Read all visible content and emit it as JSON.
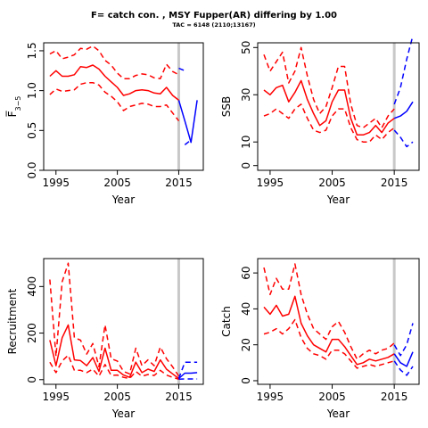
{
  "title": "F= catch con. , MSY Fupper(AR) differing by 1.00",
  "subtitle": "TAC = 6148 (2110;13167)",
  "colors": {
    "historic": "#ff0000",
    "forecast": "#0000ff",
    "divider": "#c8c8c8"
  },
  "chart_data": [
    {
      "type": "line",
      "panel": "F",
      "xlabel": "Year",
      "ylabel": "F̅",
      "ylabel_sub": "3−5",
      "xlim": [
        1993,
        2019
      ],
      "ylim": [
        0,
        1.6
      ],
      "xticks": [
        1995,
        2005,
        2015
      ],
      "xtick_labels": [
        "1995",
        "2005",
        "2015"
      ],
      "yticks": [
        0.0,
        0.5,
        1.0,
        1.5
      ],
      "ytick_labels": [
        "0.0",
        "0.5",
        "1.0",
        "1.5"
      ],
      "divider_x": 2015,
      "series": [
        {
          "role": "historic-median",
          "style": "solid",
          "color": "#ff0000",
          "x": [
            1994,
            1995,
            1996,
            1997,
            1998,
            1999,
            2000,
            2001,
            2002,
            2003,
            2004,
            2005,
            2006,
            2007,
            2008,
            2009,
            2010,
            2011,
            2012,
            2013,
            2014,
            2015
          ],
          "y": [
            1.18,
            1.25,
            1.18,
            1.18,
            1.2,
            1.3,
            1.29,
            1.32,
            1.27,
            1.18,
            1.11,
            1.04,
            0.94,
            0.96,
            1.0,
            1.01,
            1.0,
            0.97,
            0.96,
            1.04,
            0.94,
            0.88
          ]
        },
        {
          "role": "historic-upper",
          "style": "dashed",
          "color": "#ff0000",
          "x": [
            1994,
            1995,
            1996,
            1997,
            1998,
            1999,
            2000,
            2001,
            2002,
            2003,
            2004,
            2005,
            2006,
            2007,
            2008,
            2009,
            2010,
            2011,
            2012,
            2013,
            2014,
            2015
          ],
          "y": [
            1.46,
            1.5,
            1.4,
            1.42,
            1.45,
            1.53,
            1.52,
            1.56,
            1.5,
            1.38,
            1.32,
            1.22,
            1.15,
            1.15,
            1.19,
            1.21,
            1.2,
            1.16,
            1.15,
            1.33,
            1.24,
            1.2
          ]
        },
        {
          "role": "historic-lower",
          "style": "dashed",
          "color": "#ff0000",
          "x": [
            1994,
            1995,
            1996,
            1997,
            1998,
            1999,
            2000,
            2001,
            2002,
            2003,
            2004,
            2005,
            2006,
            2007,
            2008,
            2009,
            2010,
            2011,
            2012,
            2013,
            2014,
            2015
          ],
          "y": [
            0.95,
            1.02,
            0.99,
            1.0,
            1.01,
            1.08,
            1.1,
            1.1,
            1.07,
            0.98,
            0.93,
            0.86,
            0.75,
            0.8,
            0.82,
            0.84,
            0.83,
            0.8,
            0.8,
            0.82,
            0.72,
            0.62
          ]
        },
        {
          "role": "forecast-median",
          "style": "solid",
          "color": "#0000ff",
          "x": [
            2015,
            2016,
            2017,
            2018
          ],
          "y": [
            0.88,
            0.62,
            0.35,
            0.88
          ]
        },
        {
          "role": "forecast-upper",
          "style": "dashed",
          "color": "#0000ff",
          "x": [
            2015,
            2016
          ],
          "y": [
            1.28,
            1.25
          ]
        },
        {
          "role": "forecast-lower",
          "style": "dashed",
          "color": "#0000ff",
          "x": [
            2016,
            2017
          ],
          "y": [
            0.32,
            0.38
          ]
        }
      ]
    },
    {
      "type": "line",
      "panel": "SSB",
      "xlabel": "Year",
      "ylabel": "SSB",
      "xlim": [
        1993,
        2019
      ],
      "ylim": [
        -2,
        52
      ],
      "xticks": [
        1995,
        2005,
        2015
      ],
      "xtick_labels": [
        "1995",
        "2005",
        "2015"
      ],
      "yticks": [
        0,
        10,
        30,
        50
      ],
      "ytick_labels": [
        "0",
        "10",
        "30",
        "50"
      ],
      "divider_x": 2015,
      "series": [
        {
          "role": "historic-median",
          "style": "solid",
          "color": "#ff0000",
          "x": [
            1994,
            1995,
            1996,
            1997,
            1998,
            1999,
            2000,
            2001,
            2002,
            2003,
            2004,
            2005,
            2006,
            2007,
            2008,
            2009,
            2010,
            2011,
            2012,
            2013,
            2014,
            2015
          ],
          "y": [
            32,
            30,
            33,
            34,
            27,
            31,
            36,
            28,
            22,
            17,
            19,
            27,
            32,
            32,
            20,
            13,
            13,
            14,
            17,
            14,
            18,
            20
          ]
        },
        {
          "role": "historic-upper",
          "style": "dashed",
          "color": "#ff0000",
          "x": [
            1994,
            1995,
            1996,
            1997,
            1998,
            1999,
            2000,
            2001,
            2002,
            2003,
            2004,
            2005,
            2006,
            2007,
            2008,
            2009,
            2010,
            2011,
            2012,
            2013,
            2014,
            2015
          ],
          "y": [
            47,
            40,
            44,
            48,
            35,
            40,
            50,
            38,
            28,
            22,
            25,
            33,
            42,
            42,
            26,
            17,
            16,
            18,
            20,
            16,
            21,
            24
          ]
        },
        {
          "role": "historic-lower",
          "style": "dashed",
          "color": "#ff0000",
          "x": [
            1994,
            1995,
            1996,
            1997,
            1998,
            1999,
            2000,
            2001,
            2002,
            2003,
            2004,
            2005,
            2006,
            2007,
            2008,
            2009,
            2010,
            2011,
            2012,
            2013,
            2014,
            2015
          ],
          "y": [
            21,
            22,
            24,
            22,
            20,
            24,
            26,
            20,
            15,
            14,
            15,
            21,
            24,
            24,
            16,
            11,
            10,
            10,
            13,
            11,
            14,
            16
          ]
        },
        {
          "role": "forecast-median",
          "style": "solid",
          "color": "#0000ff",
          "x": [
            2015,
            2016,
            2017,
            2018
          ],
          "y": [
            20,
            21,
            23,
            27
          ]
        },
        {
          "role": "forecast-upper",
          "style": "dashed",
          "color": "#0000ff",
          "x": [
            2015,
            2016,
            2017,
            2018
          ],
          "y": [
            26,
            33,
            45,
            55
          ]
        },
        {
          "role": "forecast-lower",
          "style": "dashed",
          "color": "#0000ff",
          "x": [
            2015,
            2016,
            2017,
            2018
          ],
          "y": [
            15,
            12,
            8,
            10
          ]
        }
      ]
    },
    {
      "type": "line",
      "panel": "Recruitment",
      "xlabel": "Year",
      "ylabel": "Recruitment",
      "xlim": [
        1993,
        2019
      ],
      "ylim": [
        -20,
        520
      ],
      "xticks": [
        1995,
        2005,
        2015
      ],
      "xtick_labels": [
        "1995",
        "2005",
        "2015"
      ],
      "yticks": [
        0,
        200,
        400
      ],
      "ytick_labels": [
        "0",
        "200",
        "400"
      ],
      "divider_x": 2015,
      "series": [
        {
          "role": "historic-median",
          "style": "solid",
          "color": "#ff0000",
          "x": [
            1994,
            1995,
            1996,
            1997,
            1998,
            1999,
            2000,
            2001,
            2002,
            2003,
            2004,
            2005,
            2006,
            2007,
            2008,
            2009,
            2010,
            2011,
            2012,
            2013,
            2014,
            2015
          ],
          "y": [
            170,
            60,
            180,
            235,
            85,
            82,
            60,
            95,
            35,
            135,
            40,
            40,
            20,
            10,
            75,
            30,
            45,
            35,
            85,
            45,
            25,
            5
          ]
        },
        {
          "role": "historic-upper",
          "style": "dashed",
          "color": "#ff0000",
          "x": [
            1994,
            1995,
            1996,
            1997,
            1998,
            1999,
            2000,
            2001,
            2002,
            2003,
            2004,
            2005,
            2006,
            2007,
            2008,
            2009,
            2010,
            2011,
            2012,
            2013,
            2014,
            2015
          ],
          "y": [
            430,
            100,
            420,
            500,
            180,
            170,
            110,
            155,
            55,
            235,
            90,
            80,
            35,
            25,
            135,
            60,
            85,
            60,
            140,
            90,
            55,
            15
          ]
        },
        {
          "role": "historic-lower",
          "style": "dashed",
          "color": "#ff0000",
          "x": [
            1994,
            1995,
            1996,
            1997,
            1998,
            1999,
            2000,
            2001,
            2002,
            2003,
            2004,
            2005,
            2006,
            2007,
            2008,
            2009,
            2010,
            2011,
            2012,
            2013,
            2014,
            2015
          ],
          "y": [
            75,
            30,
            80,
            105,
            40,
            40,
            30,
            45,
            15,
            65,
            18,
            20,
            10,
            5,
            35,
            15,
            22,
            18,
            40,
            20,
            10,
            2
          ]
        },
        {
          "role": "forecast-median",
          "style": "solid",
          "color": "#0000ff",
          "x": [
            2015,
            2016,
            2017,
            2018
          ],
          "y": [
            5,
            28,
            28,
            30
          ]
        },
        {
          "role": "forecast-upper",
          "style": "dashed",
          "color": "#0000ff",
          "x": [
            2015,
            2016,
            2017,
            2018
          ],
          "y": [
            5,
            75,
            75,
            75
          ]
        },
        {
          "role": "forecast-lower",
          "style": "dashed",
          "color": "#0000ff",
          "x": [
            2015,
            2016,
            2017,
            2018
          ],
          "y": [
            2,
            3,
            3,
            3
          ]
        }
      ]
    },
    {
      "type": "line",
      "panel": "Catch",
      "xlabel": "Year",
      "ylabel": "Catch",
      "xlim": [
        1993,
        2019
      ],
      "ylim": [
        -2,
        68
      ],
      "xticks": [
        1995,
        2005,
        2015
      ],
      "xtick_labels": [
        "1995",
        "2005",
        "2015"
      ],
      "yticks": [
        0,
        20,
        40,
        60
      ],
      "ytick_labels": [
        "0",
        "20",
        "40",
        "60"
      ],
      "divider_x": 2015,
      "series": [
        {
          "role": "historic-median",
          "style": "solid",
          "color": "#ff0000",
          "x": [
            1994,
            1995,
            1996,
            1997,
            1998,
            1999,
            2000,
            2001,
            2002,
            2003,
            2004,
            2005,
            2006,
            2007,
            2008,
            2009,
            2010,
            2011,
            2012,
            2013,
            2014,
            2015
          ],
          "y": [
            41,
            37,
            42,
            36,
            37,
            47,
            32,
            25,
            20,
            18,
            16,
            23,
            23,
            19,
            14,
            9,
            10,
            12,
            11,
            12,
            13,
            15
          ]
        },
        {
          "role": "historic-upper",
          "style": "dashed",
          "color": "#ff0000",
          "x": [
            1994,
            1995,
            1996,
            1997,
            1998,
            1999,
            2000,
            2001,
            2002,
            2003,
            2004,
            2005,
            2006,
            2007,
            2008,
            2009,
            2010,
            2011,
            2012,
            2013,
            2014,
            2015
          ],
          "y": [
            63,
            48,
            57,
            51,
            51,
            65,
            48,
            37,
            29,
            26,
            23,
            30,
            33,
            27,
            19,
            12,
            15,
            17,
            15,
            17,
            18,
            21
          ]
        },
        {
          "role": "historic-lower",
          "style": "dashed",
          "color": "#ff0000",
          "x": [
            1994,
            1995,
            1996,
            1997,
            1998,
            1999,
            2000,
            2001,
            2002,
            2003,
            2004,
            2005,
            2006,
            2007,
            2008,
            2009,
            2010,
            2011,
            2012,
            2013,
            2014,
            2015
          ],
          "y": [
            26,
            27,
            29,
            26,
            29,
            34,
            24,
            18,
            15,
            14,
            12,
            17,
            17,
            15,
            11,
            7,
            8,
            9,
            8,
            9,
            10,
            11
          ]
        },
        {
          "role": "forecast-median",
          "style": "solid",
          "color": "#0000ff",
          "x": [
            2015,
            2016,
            2017,
            2018
          ],
          "y": [
            15,
            10,
            8,
            16
          ]
        },
        {
          "role": "forecast-upper",
          "style": "dashed",
          "color": "#0000ff",
          "x": [
            2015,
            2016,
            2017,
            2018
          ],
          "y": [
            20,
            14,
            20,
            32
          ]
        },
        {
          "role": "forecast-lower",
          "style": "dashed",
          "color": "#0000ff",
          "x": [
            2015,
            2016,
            2017,
            2018
          ],
          "y": [
            11,
            6,
            3,
            8
          ]
        }
      ]
    }
  ]
}
